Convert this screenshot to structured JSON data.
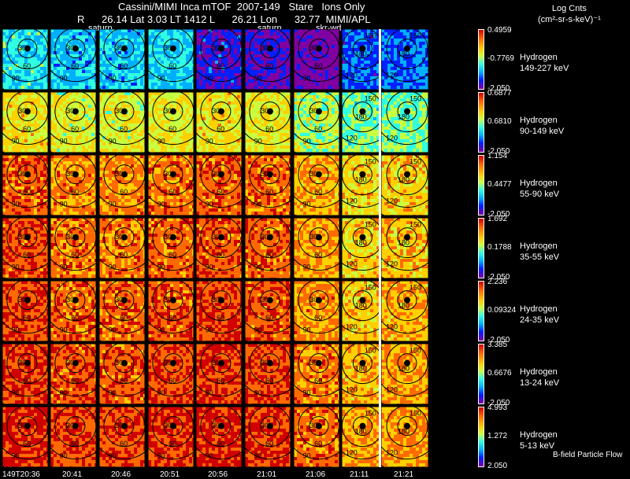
{
  "header": {
    "line1": "Cassini/MIMI Inca mTOF  2007-149   Stare   Ions Only",
    "line2": "R      26.14 Lat 3.03 LT 1412 L      26.21 Lon      32.77  MIMI/APL",
    "frame_labels": [
      "saturn",
      "saturn",
      "skr-wd"
    ]
  },
  "units": {
    "line1": "Log Cnts",
    "line2": "(cm²-sr-s-keV)⁻¹"
  },
  "rows": [
    {
      "species": "Hydrogen",
      "range": "149-227 keV",
      "top": "0.4959",
      "mid": "-0.7769",
      "bottom": "-2.050"
    },
    {
      "species": "Hydrogen",
      "range": "90-149 keV",
      "top": "0.6877",
      "mid": "0.6810",
      "bottom": "-2.050"
    },
    {
      "species": "Hydrogen",
      "range": "55-90 keV",
      "top": "1.154",
      "mid": "0.4477",
      "bottom": "-2.050"
    },
    {
      "species": "Hydrogen",
      "range": "35-55 keV",
      "top": "1.692",
      "mid": "0.1788",
      "bottom": "-2.050"
    },
    {
      "species": "Hydrogen",
      "range": "24-35 keV",
      "top": "2.236",
      "mid": "0.09324",
      "bottom": "-2.050"
    },
    {
      "species": "Hydrogen",
      "range": "13-24 keV",
      "top": "3.385",
      "mid": "0.6676",
      "bottom": "-2.050"
    },
    {
      "species": "Hydrogen",
      "range": "5-13 keV",
      "top": "4.993",
      "mid": "1.272",
      "bottom": "2.050"
    }
  ],
  "times": [
    "149T20:36",
    "20:41",
    "20:46",
    "20:51",
    "20:56",
    "21:01",
    "21:06",
    "21:11",
    "21:21"
  ],
  "contour_labels": [
    "30",
    "60",
    "90",
    "120",
    "150",
    "180"
  ],
  "footer": "B-field Particle Flow"
}
